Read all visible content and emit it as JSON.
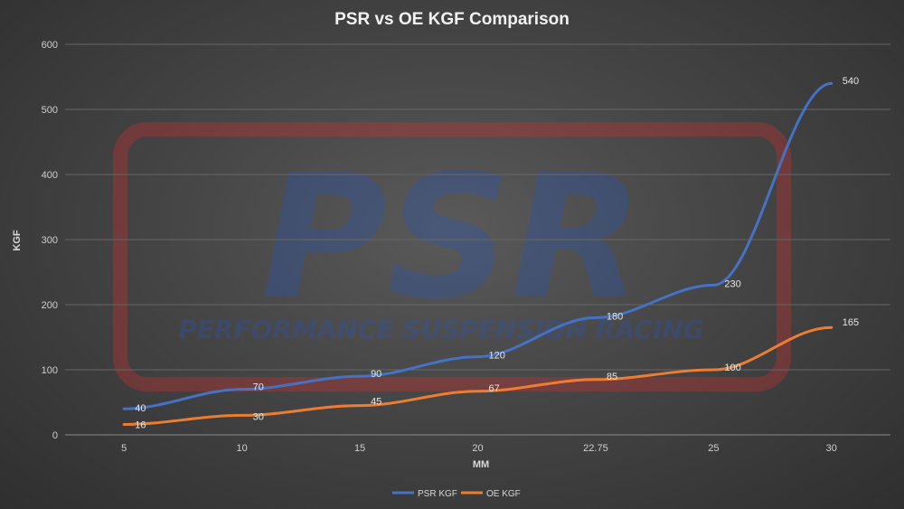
{
  "watermark": {
    "logo_text": "PSR",
    "tagline": "PERFORMANCE SUSPENSION RACING"
  },
  "chart_data": {
    "type": "line",
    "title": "PSR vs OE KGF Comparison",
    "xlabel": "MM",
    "ylabel": "KGF",
    "categories": [
      "5",
      "10",
      "15",
      "20",
      "22.75",
      "25",
      "30"
    ],
    "ylim": [
      0,
      600
    ],
    "yticks": [
      0,
      100,
      200,
      300,
      400,
      500,
      600
    ],
    "grid": true,
    "legend_position": "bottom",
    "series": [
      {
        "name": "PSR KGF",
        "color": "#4472c4",
        "values": [
          40,
          70,
          90,
          120,
          180,
          230,
          540
        ]
      },
      {
        "name": "OE KGF",
        "color": "#ed7d31",
        "values": [
          16,
          30,
          45,
          67,
          85,
          100,
          165
        ]
      }
    ]
  }
}
